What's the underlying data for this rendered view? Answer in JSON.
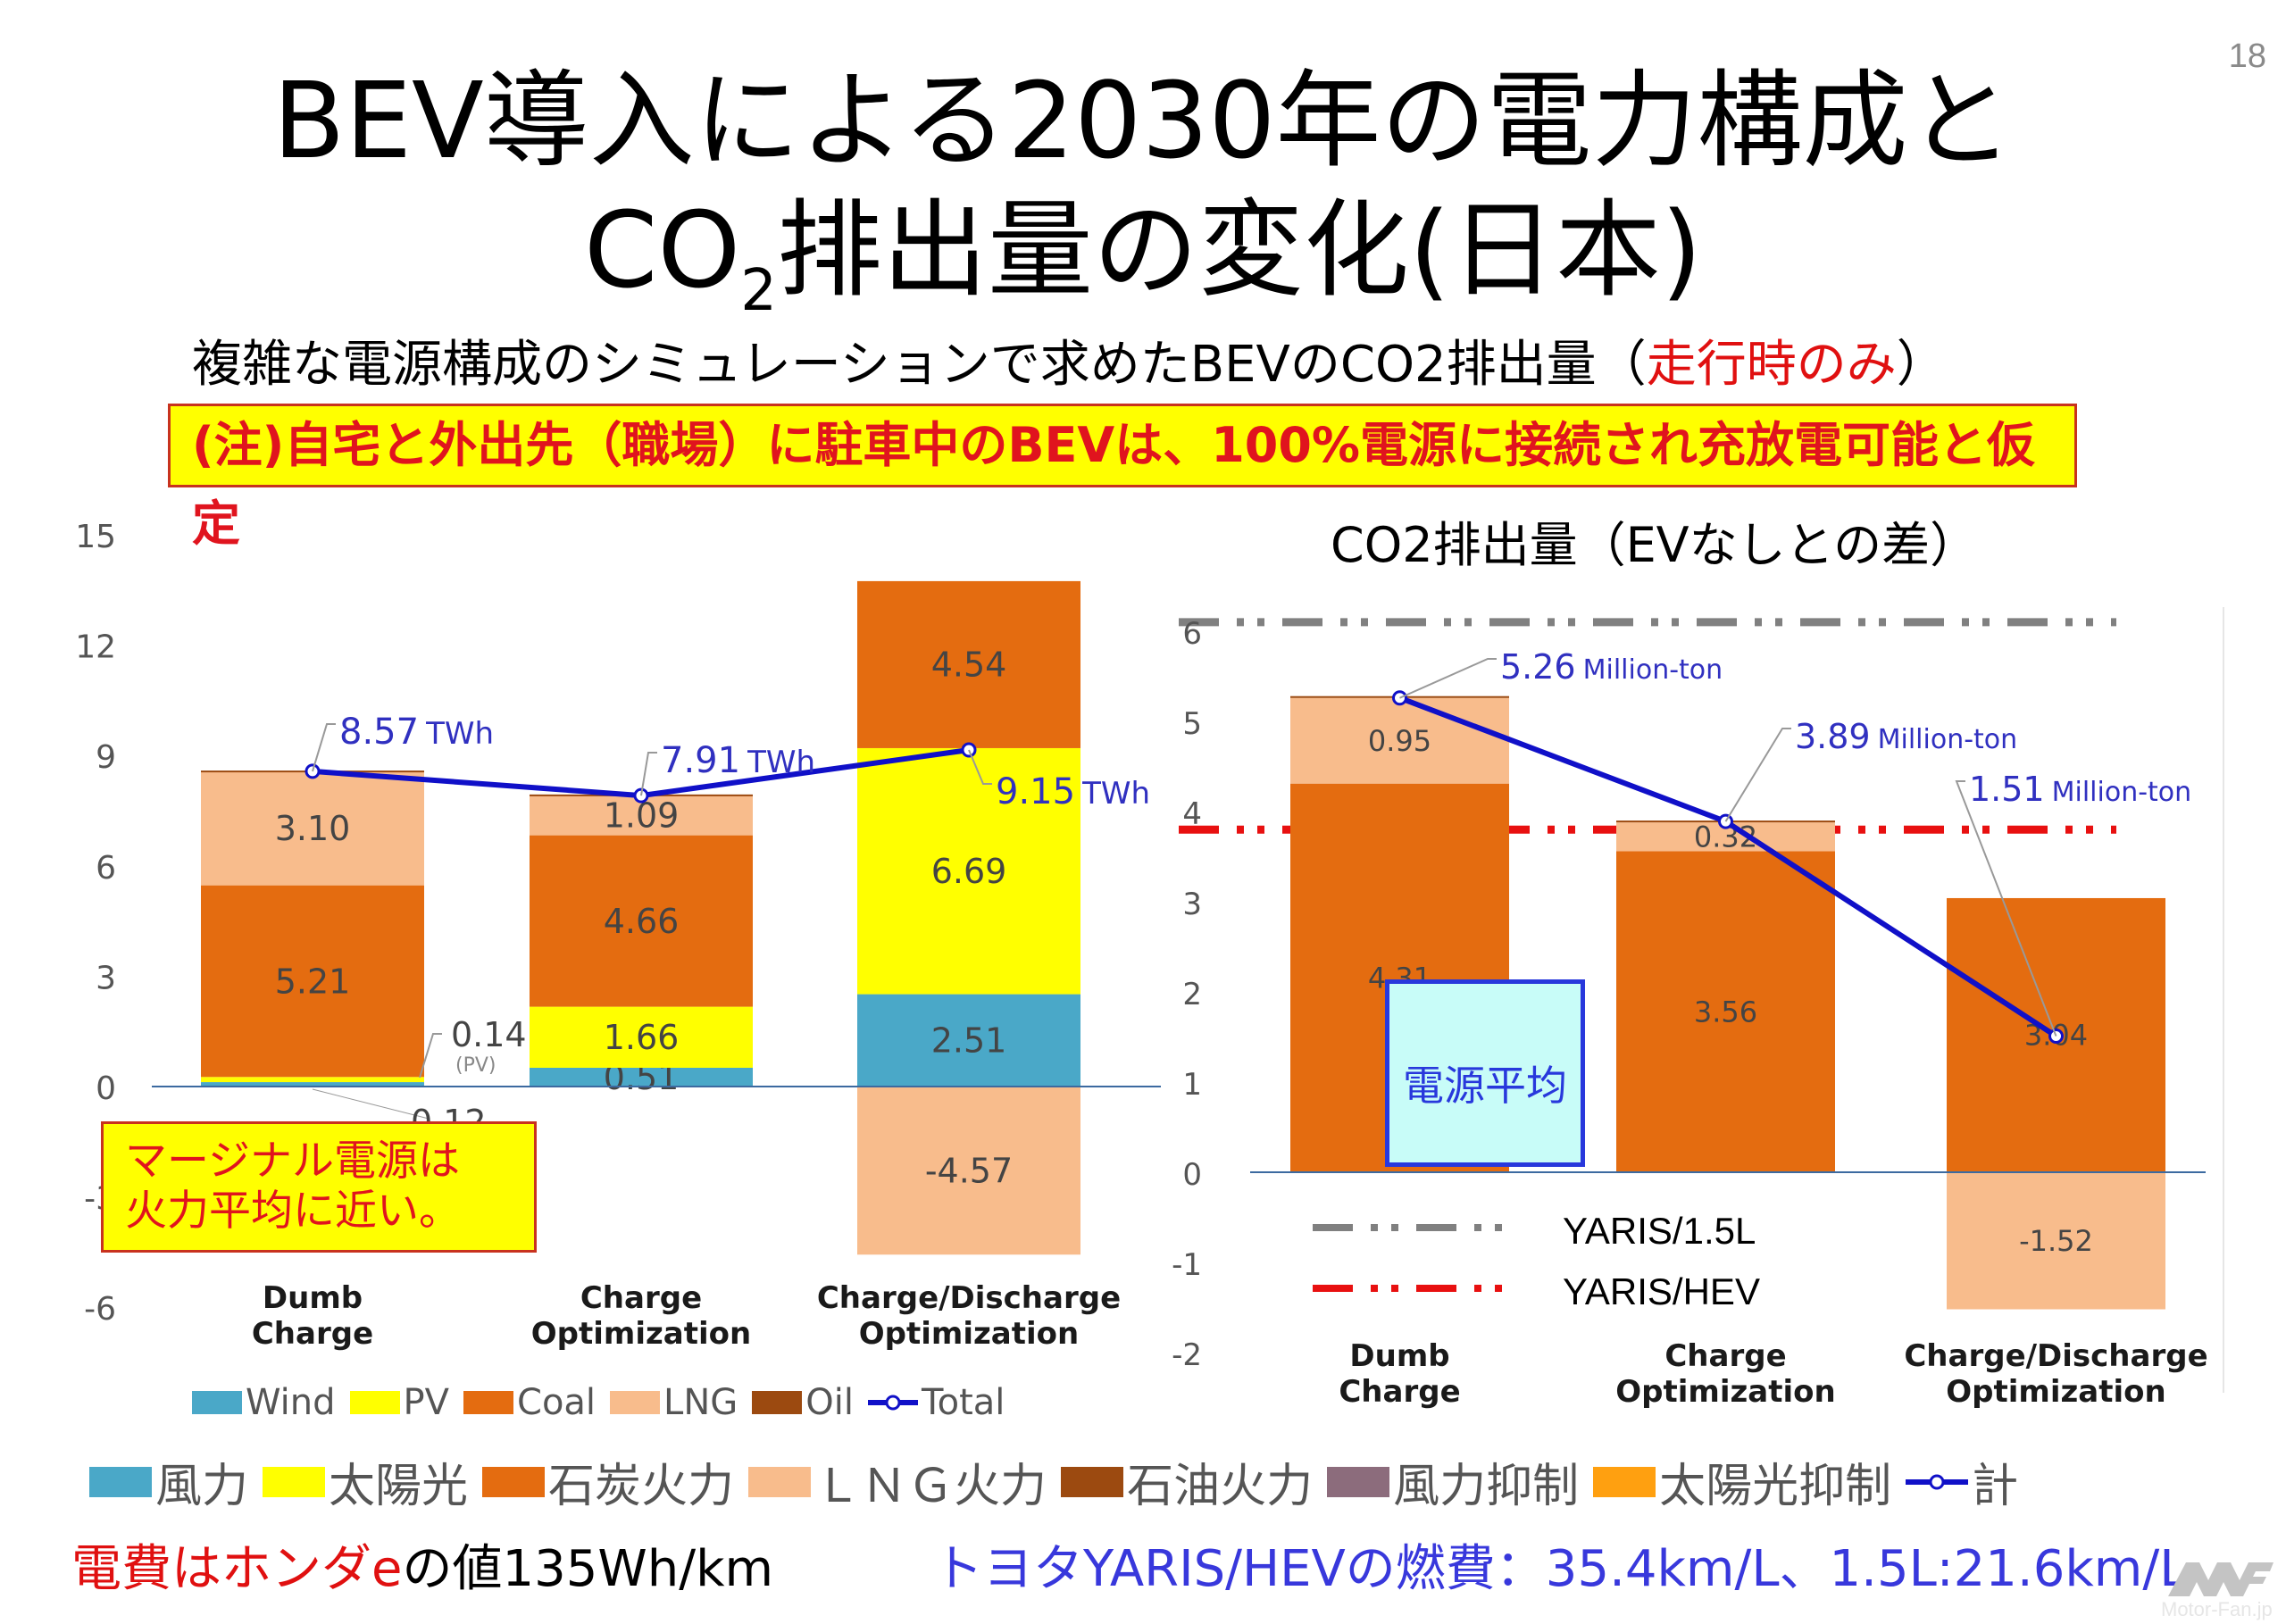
{
  "page_number": "18",
  "title": {
    "line1": "BEV導入による2030年の電力構成と",
    "line2_pre": "CO",
    "line2_sub": "2",
    "line2_post": "排出量の変化(日本)"
  },
  "subtitle": {
    "main": "複雑な電源構成のシミュレーションで求めたBEVのCO2排出量（",
    "highlight": "走行時のみ",
    "close": "）"
  },
  "note": "(注)自宅と外出先（職場）に駐車中のBEVは、100%電源に接続され充放電可能と仮定",
  "marginal_callout": {
    "line1": "マージナル電源は",
    "line2": "火力平均に近い。"
  },
  "average_callout": "電源平均",
  "right_chart_title": "CO2排出量（EVなしとの差）",
  "yaris_legend": [
    {
      "label": "YARIS/1.5L",
      "color": "#808080"
    },
    {
      "label": "YARIS/HEV",
      "color": "#e81010"
    }
  ],
  "legend_en": [
    {
      "label": "Wind",
      "color": "#4aa8c8",
      "type": "box"
    },
    {
      "label": "PV",
      "color": "#ffff00",
      "type": "box"
    },
    {
      "label": "Coal",
      "color": "#e46c10",
      "type": "box"
    },
    {
      "label": "LNG",
      "color": "#f8bc8c",
      "type": "box"
    },
    {
      "label": "Oil",
      "color": "#9c4a10",
      "type": "box"
    },
    {
      "label": "Total",
      "color": "#1010c8",
      "type": "line"
    }
  ],
  "legend_jp": [
    {
      "label": "風力",
      "color": "#4aa8c8",
      "type": "box"
    },
    {
      "label": "太陽光",
      "color": "#ffff00",
      "type": "box"
    },
    {
      "label": "石炭火力",
      "color": "#e46c10",
      "type": "box"
    },
    {
      "label": "ＬＮＧ火力",
      "color": "#f8bc8c",
      "type": "box"
    },
    {
      "label": "石油火力",
      "color": "#9c4a10",
      "type": "box"
    },
    {
      "label": "風力抑制",
      "color": "#8c6c7c",
      "type": "box"
    },
    {
      "label": "太陽光抑制",
      "color": "#ffa010",
      "type": "box"
    },
    {
      "label": "計",
      "color": "#1010c8",
      "type": "line"
    }
  ],
  "footer": {
    "left_red": "電費はホンダe",
    "left_black": "の値135Wh/km",
    "right": "トヨタYARIS/HEVの燃費：35.4km/L、1.5L:21.6km/L"
  },
  "watermark": "Motor-Fan.jp",
  "colors": {
    "wind": "#4aa8c8",
    "pv": "#ffff00",
    "coal": "#e46c10",
    "lng": "#f8bc8c",
    "oil": "#9c4a10",
    "total": "#1010c8",
    "axis": "#3c6aa0",
    "tick": "#555555"
  },
  "chart_data": [
    {
      "type": "bar",
      "stacked": true,
      "title": "",
      "ylabel": "TWh",
      "ylim": [
        -6,
        15
      ],
      "yticks": [
        15,
        12,
        9,
        6,
        3,
        0,
        -3,
        -6
      ],
      "categories": [
        [
          "Dumb",
          "Charge"
        ],
        [
          "Charge",
          "Optimization"
        ],
        [
          "Charge/Discharge",
          "Optimization"
        ]
      ],
      "series": [
        {
          "name": "Wind",
          "key": "wind",
          "values": [
            0.12,
            0.51,
            2.51
          ],
          "labels": [
            "0.12",
            "0.51",
            "2.51"
          ]
        },
        {
          "name": "PV",
          "key": "pv",
          "values": [
            0.14,
            1.66,
            6.69
          ],
          "labels": [
            "0.14 (PV)",
            "1.66",
            "6.69"
          ]
        },
        {
          "name": "Coal",
          "key": "coal",
          "values": [
            5.21,
            4.66,
            4.54
          ],
          "labels": [
            "5.21",
            "4.66",
            "4.54"
          ]
        },
        {
          "name": "LNG",
          "key": "lng",
          "values": [
            3.1,
            1.09,
            -4.57
          ],
          "labels": [
            "3.10",
            "1.09",
            "-4.57"
          ]
        },
        {
          "name": "Oil",
          "key": "oil",
          "values": [
            0.02,
            0.02,
            0.0
          ],
          "labels": [
            "",
            "",
            ""
          ]
        }
      ],
      "total": {
        "name": "Total",
        "values": [
          8.57,
          7.91,
          9.15
        ],
        "labels": [
          "8.57",
          "7.91",
          "9.15"
        ],
        "unit": "TWh"
      },
      "legend": "bottom"
    },
    {
      "type": "bar",
      "stacked": true,
      "title": "CO2排出量（EVなしとの差）",
      "ylabel": "Million-ton",
      "ylim": [
        -2,
        6
      ],
      "yticks": [
        6,
        5,
        4,
        3,
        2,
        1,
        0,
        -1,
        -2
      ],
      "categories": [
        [
          "Dumb",
          "Charge"
        ],
        [
          "Charge",
          "Optimization"
        ],
        [
          "Charge/Discharge",
          "Optimization"
        ]
      ],
      "series": [
        {
          "name": "Coal",
          "key": "coal",
          "values": [
            4.31,
            3.56,
            3.04
          ],
          "labels": [
            "4.31",
            "3.56",
            "3.04"
          ]
        },
        {
          "name": "LNG",
          "key": "lng",
          "values": [
            0.95,
            0.32,
            -1.52
          ],
          "labels": [
            "0.95",
            "0.32",
            "-1.52"
          ]
        },
        {
          "name": "Oil",
          "key": "oil",
          "values": [
            0.02,
            0.02,
            0.0
          ],
          "labels": [
            "",
            "",
            ""
          ]
        }
      ],
      "total": {
        "name": "Total",
        "values": [
          5.26,
          3.89,
          1.51
        ],
        "labels": [
          "5.26",
          "3.89",
          "1.51"
        ],
        "unit": "Million-ton"
      },
      "reference_lines": [
        {
          "name": "YARIS/1.5L",
          "value": 6.1,
          "color": "#808080"
        },
        {
          "name": "YARIS/HEV",
          "value": 3.8,
          "color": "#e81010"
        }
      ],
      "legend": "bottom-left"
    }
  ]
}
